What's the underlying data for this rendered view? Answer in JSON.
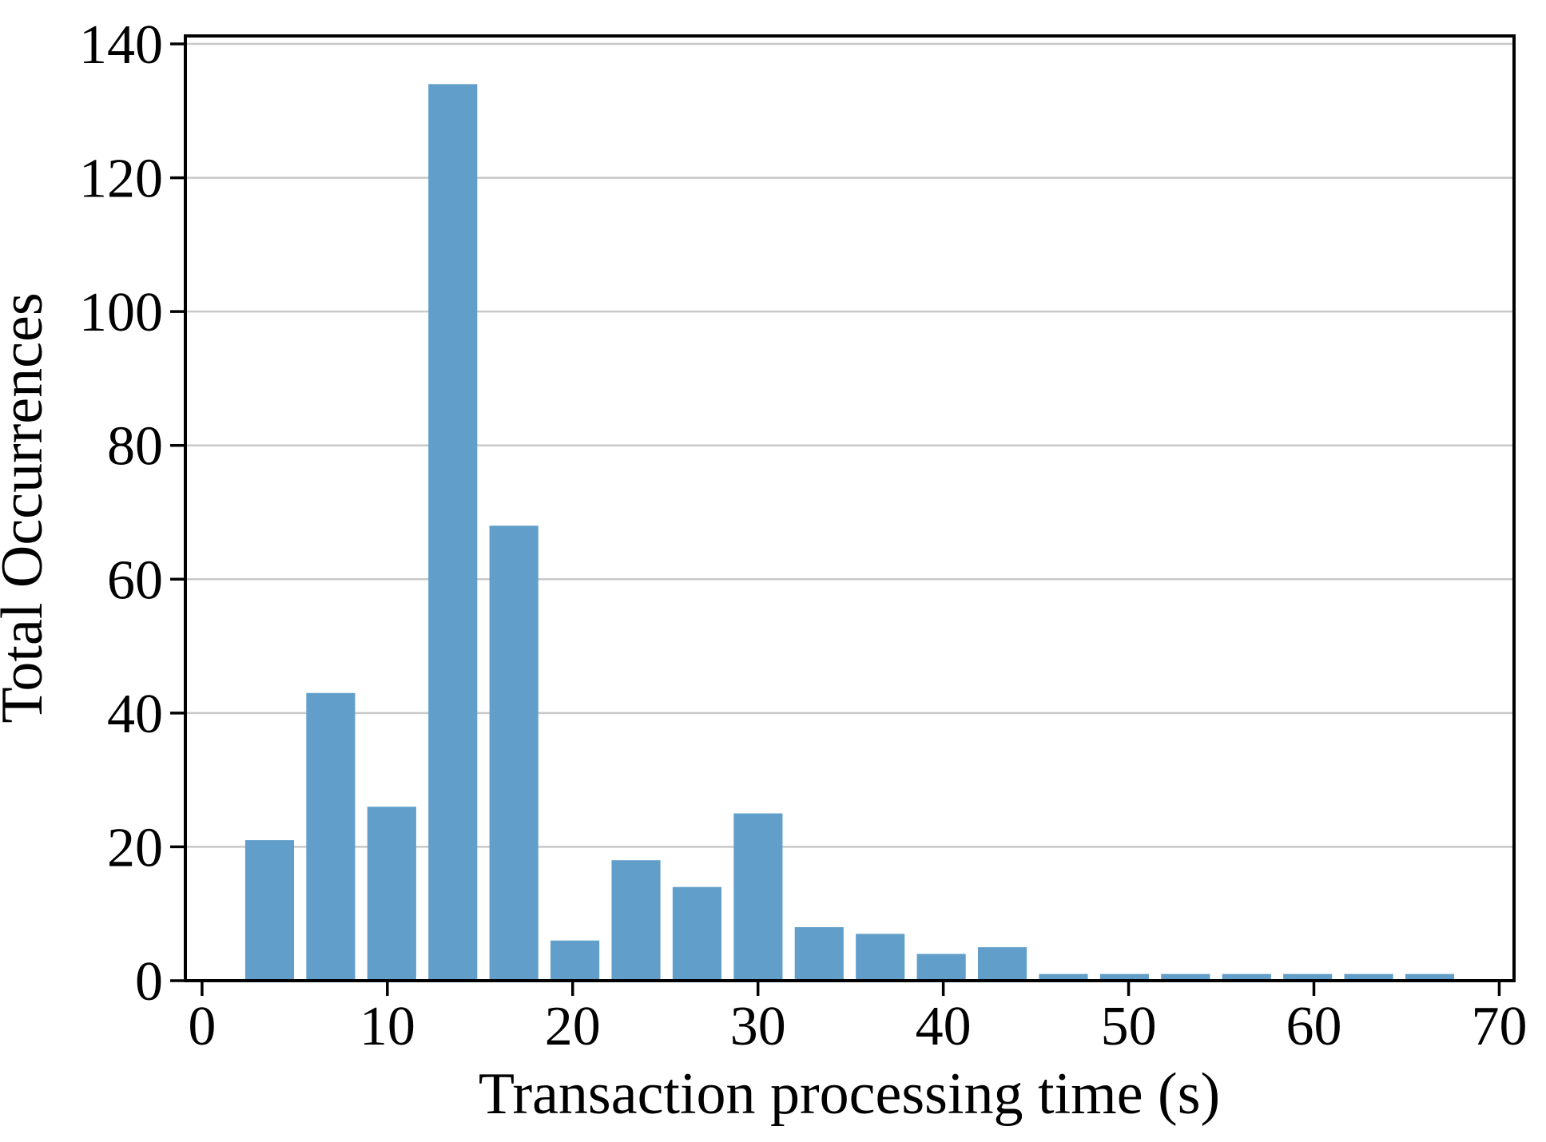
{
  "figure": {
    "background": "#ffffff"
  },
  "chart_data": {
    "type": "bar",
    "title": "",
    "xlabel": "Transaction processing time (s)",
    "ylabel": "Total Occurrences",
    "legend": null,
    "grid": "horizontal",
    "grid_color": "#c8c8c8",
    "bar_color": "#619fca",
    "spine_color": "#000000",
    "tick_color": "#000000",
    "xlim": [
      -0.9,
      70.8
    ],
    "ylim": [
      0,
      141.2
    ],
    "x_ticks": [
      0,
      10,
      20,
      30,
      40,
      50,
      60,
      70
    ],
    "y_ticks": [
      0,
      20,
      40,
      60,
      80,
      100,
      120,
      140
    ],
    "bin_start": 2.0,
    "bin_width": 3.295,
    "rwidth": 0.8,
    "counts": [
      21,
      43,
      26,
      134,
      68,
      6,
      18,
      14,
      25,
      8,
      7,
      4,
      5,
      1,
      1,
      1,
      1,
      1,
      1,
      1
    ],
    "bin_centers": [
      3.65,
      6.94,
      10.24,
      13.53,
      16.83,
      20.12,
      23.42,
      26.71,
      30.01,
      33.3,
      36.6,
      39.89,
      43.19,
      46.48,
      49.78,
      53.07,
      56.37,
      59.66,
      62.96,
      66.25
    ]
  }
}
